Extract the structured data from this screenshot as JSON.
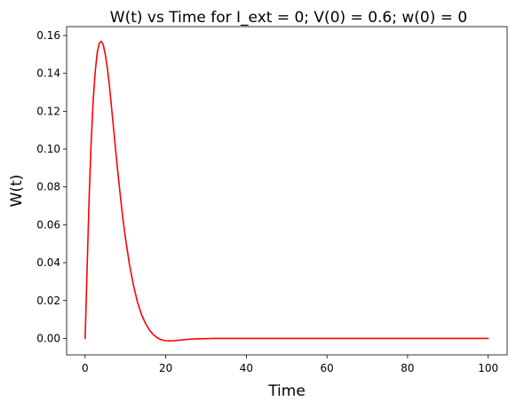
{
  "chart_data": {
    "type": "line",
    "title": "W(t) vs Time for I_ext = 0; V(0) = 0.6; w(0) = 0",
    "xlabel": "Time",
    "ylabel": "W(t)",
    "xlim": [
      -4.6,
      104.7
    ],
    "ylim": [
      -0.0087,
      0.1647
    ],
    "xticks": [
      0,
      20,
      40,
      60,
      80,
      100
    ],
    "yticks": [
      0.0,
      0.02,
      0.04,
      0.06,
      0.08,
      0.1,
      0.12,
      0.14,
      0.16
    ],
    "xtick_labels": [
      "0",
      "20",
      "40",
      "60",
      "80",
      "100"
    ],
    "ytick_labels": [
      "0.00",
      "0.02",
      "0.04",
      "0.06",
      "0.08",
      "0.10",
      "0.12",
      "0.14",
      "0.16"
    ],
    "grid": false,
    "series": [
      {
        "color": "#ff0000",
        "x": [
          0,
          0.5,
          1,
          1.5,
          2,
          2.5,
          3,
          3.5,
          4,
          4.5,
          5,
          5.5,
          6,
          6.5,
          7,
          7.5,
          8,
          8.5,
          9,
          9.5,
          10,
          11,
          12,
          13,
          14,
          15,
          16,
          17,
          18,
          19,
          20,
          21,
          22,
          23,
          24,
          25,
          26,
          28,
          30,
          32,
          35,
          40,
          50,
          60,
          70,
          80,
          90,
          100
        ],
        "y": [
          0.0,
          0.038,
          0.075,
          0.104,
          0.126,
          0.141,
          0.151,
          0.156,
          0.157,
          0.155,
          0.15,
          0.143,
          0.134,
          0.123,
          0.112,
          0.101,
          0.09,
          0.08,
          0.07,
          0.061,
          0.053,
          0.039,
          0.028,
          0.019,
          0.0125,
          0.0078,
          0.0043,
          0.0018,
          0.0002,
          -0.0008,
          -0.0012,
          -0.0013,
          -0.0012,
          -0.001,
          -0.0008,
          -0.0006,
          -0.0004,
          -0.0002,
          -0.0001,
          0.0,
          0.0,
          0.0,
          0.0,
          0.0,
          0.0,
          0.0,
          0.0,
          0.0
        ]
      }
    ]
  }
}
